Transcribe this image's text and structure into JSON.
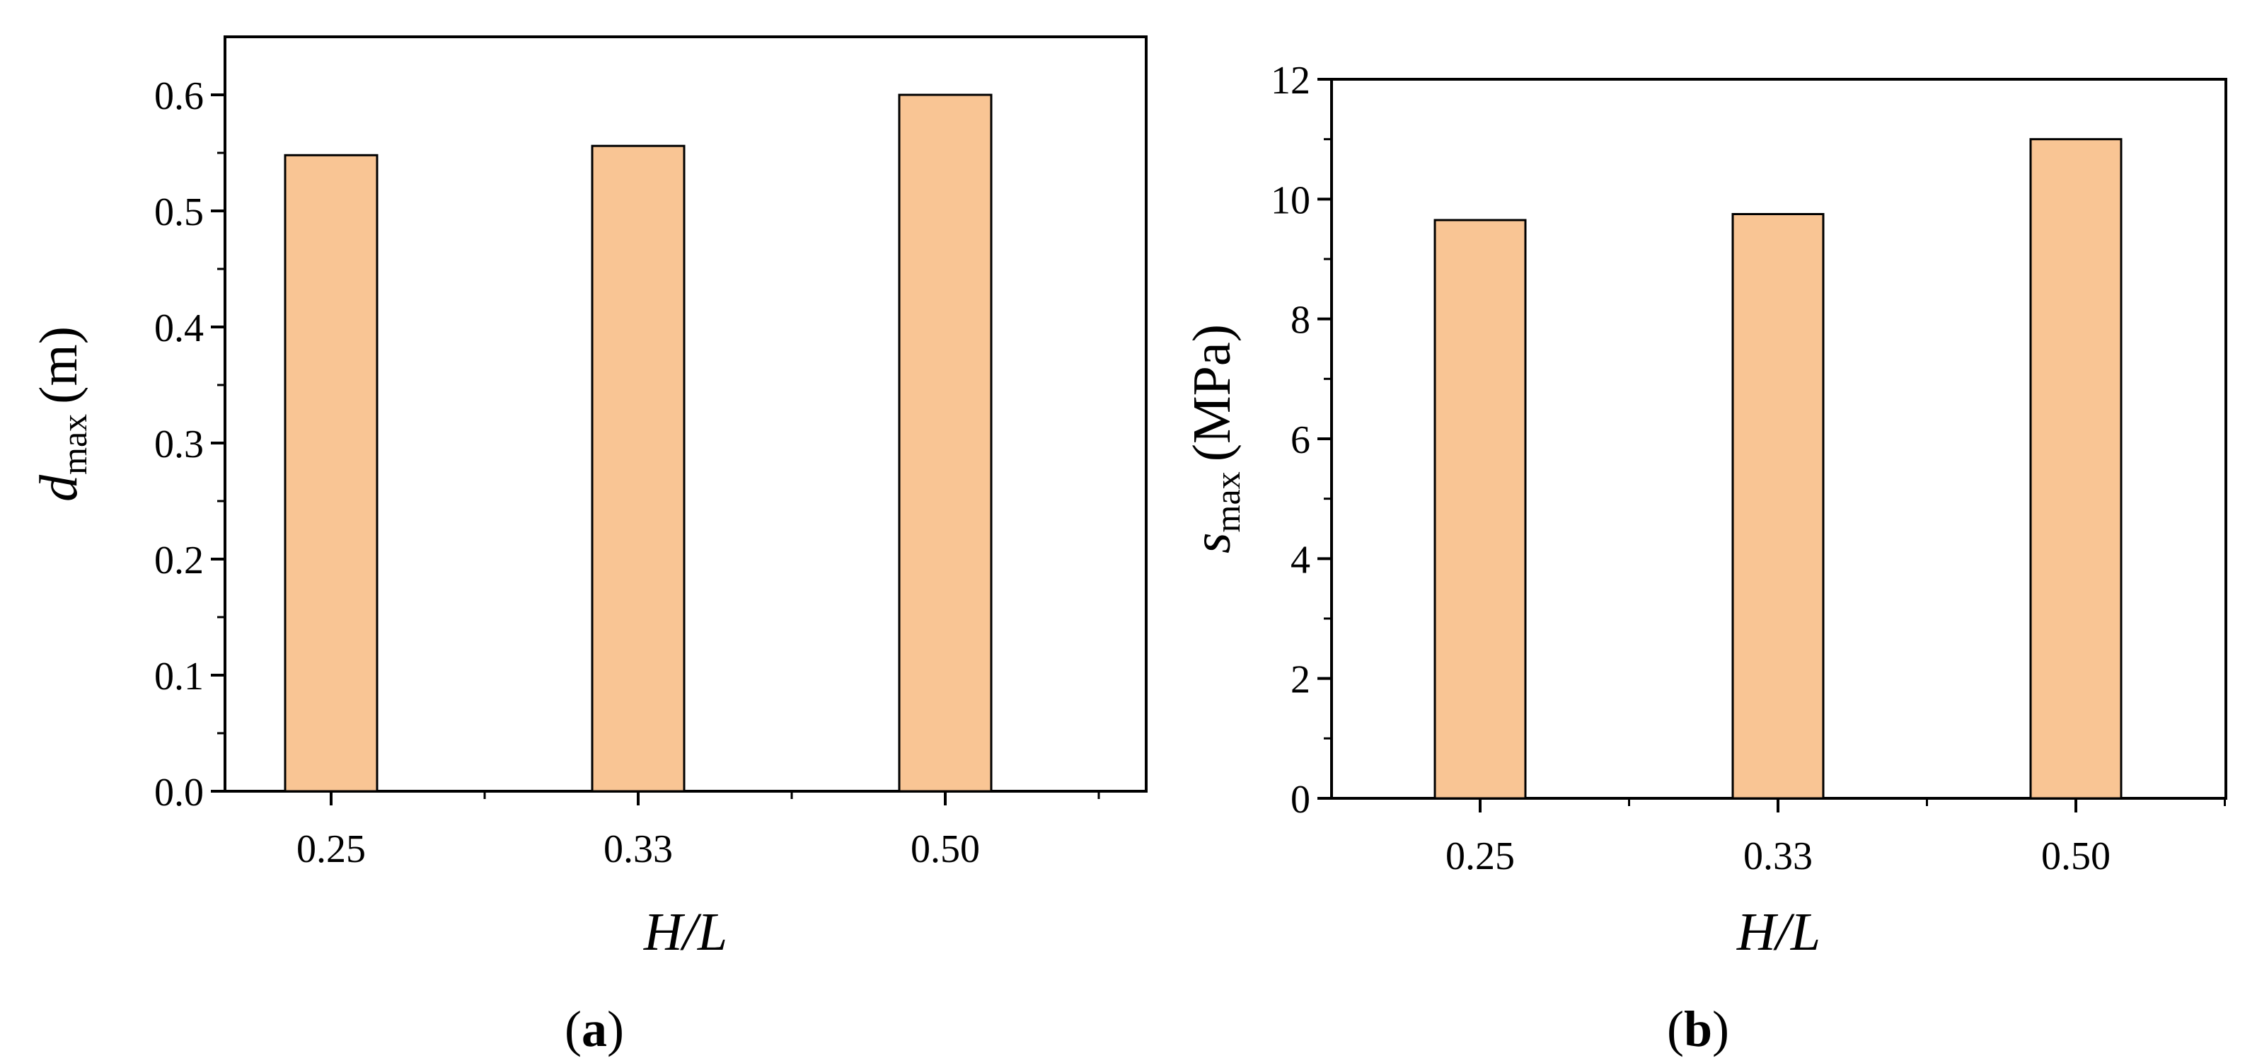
{
  "colors": {
    "bar_fill": "#F9C594",
    "bar_stroke": "#000000",
    "axis": "#000000"
  },
  "chart_data": [
    {
      "type": "bar",
      "panel_label": "a",
      "categories": [
        "0.25",
        "0.33",
        "0.50"
      ],
      "values": [
        0.548,
        0.556,
        0.6
      ],
      "xlabel": "H/L",
      "ylabel_symbol": "d",
      "ylabel_subscript": "max",
      "ylabel_unit": "(m)",
      "ylim": [
        0,
        0.65
      ],
      "yticks": [
        "0.0",
        "0.1",
        "0.2",
        "0.3",
        "0.4",
        "0.5",
        "0.6"
      ],
      "grid": false
    },
    {
      "type": "bar",
      "panel_label": "b",
      "categories": [
        "0.25",
        "0.33",
        "0.50"
      ],
      "values": [
        9.65,
        9.75,
        11.0
      ],
      "xlabel": "H/L",
      "ylabel_symbol": "s",
      "ylabel_subscript": "max",
      "ylabel_unit": "(MPa)",
      "ylim": [
        0,
        12
      ],
      "yticks": [
        "0",
        "2",
        "4",
        "6",
        "8",
        "10",
        "12"
      ],
      "grid": false
    }
  ]
}
